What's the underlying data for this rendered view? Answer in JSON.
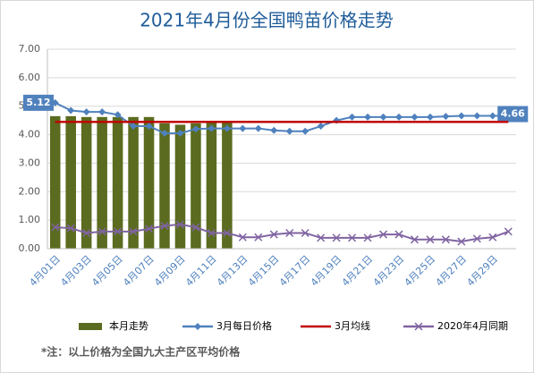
{
  "chart_data": {
    "type": "bar",
    "title": "2021年4月份全国鸭苗价格走势",
    "footnote": "*注：以上价格为全国九大主产区平均价格",
    "categories": [
      "4月01日",
      null,
      "4月03日",
      null,
      "4月05日",
      null,
      "4月07日",
      null,
      "4月09日",
      null,
      "4月11日",
      null,
      "4月13日",
      null,
      "4月15日",
      null,
      "4月17日",
      null,
      "4月19日",
      null,
      "4月21日",
      null,
      "4月23日",
      null,
      "4月25日",
      null,
      "4月27日",
      null,
      "4月29日",
      null
    ],
    "ylim": [
      0,
      7
    ],
    "yticks": [
      {
        "value": 0,
        "label": "0.00"
      },
      {
        "value": 1,
        "label": "1.00"
      },
      {
        "value": 2,
        "label": "2.00"
      },
      {
        "value": 3,
        "label": "3.00"
      },
      {
        "value": 4,
        "label": "4.00"
      },
      {
        "value": 5,
        "label": "5.00"
      },
      {
        "value": 6,
        "label": "6.00"
      },
      {
        "value": 7,
        "label": "7.00"
      }
    ],
    "grid": true,
    "legend": "bottom",
    "series": [
      {
        "name": "本月走势",
        "type": "bar",
        "color": "#5b6b1f",
        "values": [
          4.65,
          4.65,
          4.62,
          4.62,
          4.62,
          4.62,
          4.62,
          4.4,
          4.35,
          4.4,
          4.45,
          4.45,
          null,
          null,
          null,
          null,
          null,
          null,
          null,
          null,
          null,
          null,
          null,
          null,
          null,
          null,
          null,
          null,
          null,
          null
        ]
      },
      {
        "name": "3月每日价格",
        "type": "line",
        "color": "#4f81bd",
        "marker": "diamond",
        "values": [
          5.12,
          4.85,
          4.8,
          4.8,
          4.7,
          4.3,
          4.3,
          4.05,
          4.05,
          4.2,
          4.22,
          4.22,
          4.22,
          4.22,
          4.15,
          4.12,
          4.12,
          4.3,
          4.5,
          4.62,
          4.62,
          4.62,
          4.62,
          4.62,
          4.62,
          4.64,
          4.66,
          4.66,
          4.66,
          4.66
        ],
        "value_labels": [
          "5.12",
          null,
          null,
          null,
          null,
          null,
          null,
          null,
          null,
          null,
          null,
          null,
          null,
          null,
          null,
          null,
          null,
          null,
          null,
          null,
          null,
          null,
          null,
          null,
          null,
          null,
          null,
          null,
          null,
          "4.66"
        ]
      },
      {
        "name": "3月均线",
        "type": "line",
        "color": "#c00000",
        "marker": null,
        "values": [
          4.45,
          4.45,
          4.45,
          4.45,
          4.45,
          4.45,
          4.45,
          4.45,
          4.45,
          4.45,
          4.45,
          4.45,
          4.45,
          4.45,
          4.45,
          4.45,
          4.45,
          4.45,
          4.45,
          4.45,
          4.45,
          4.45,
          4.45,
          4.45,
          4.45,
          4.45,
          4.45,
          4.45,
          4.45,
          4.45
        ]
      },
      {
        "name": "2020年4月同期",
        "type": "line",
        "color": "#8064a2",
        "marker": "x",
        "values": [
          0.75,
          0.72,
          0.55,
          0.6,
          0.6,
          0.6,
          0.7,
          0.8,
          0.85,
          0.75,
          0.55,
          0.55,
          0.4,
          0.4,
          0.5,
          0.55,
          0.55,
          0.38,
          0.38,
          0.38,
          0.38,
          0.5,
          0.5,
          0.32,
          0.32,
          0.32,
          0.25,
          0.35,
          0.4,
          0.6
        ]
      }
    ]
  }
}
